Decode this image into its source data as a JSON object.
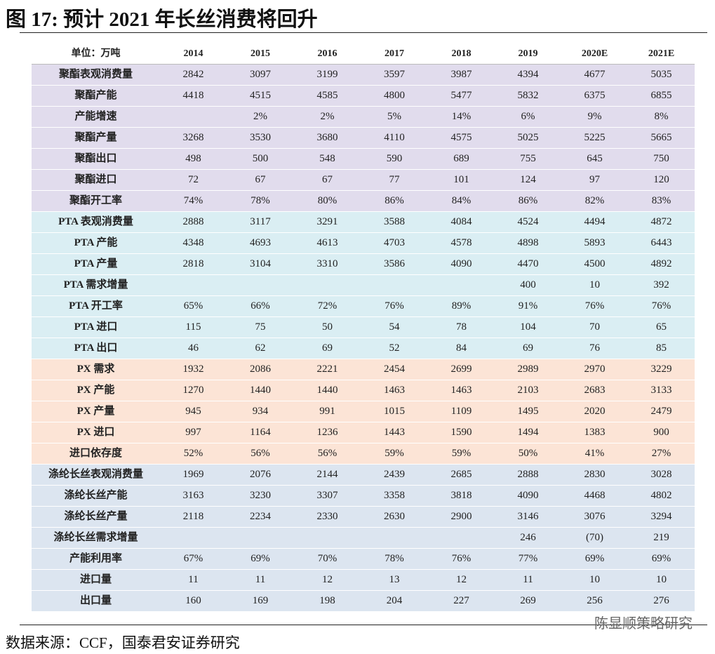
{
  "title": "图 17: 预计 2021 年长丝消费将回升",
  "table": {
    "header": [
      "单位：万吨",
      "2014",
      "2015",
      "2016",
      "2017",
      "2018",
      "2019",
      "2020E",
      "2021E"
    ],
    "groups": [
      {
        "rows": [
          {
            "label": "聚酯表观消费量",
            "values": [
              "2842",
              "3097",
              "3199",
              "3597",
              "3987",
              "4394",
              "4677",
              "5035"
            ]
          },
          {
            "label": "聚酯产能",
            "values": [
              "4418",
              "4515",
              "4585",
              "4800",
              "5477",
              "5832",
              "6375",
              "6855"
            ]
          },
          {
            "label": "产能增速",
            "values": [
              null,
              "2%",
              "2%",
              "5%",
              "14%",
              "6%",
              "9%",
              "8%"
            ]
          },
          {
            "label": "聚酯产量",
            "values": [
              "3268",
              "3530",
              "3680",
              "4110",
              "4575",
              "5025",
              "5225",
              "5665"
            ]
          },
          {
            "label": "聚酯出口",
            "values": [
              "498",
              "500",
              "548",
              "590",
              "689",
              "755",
              "645",
              "750"
            ]
          },
          {
            "label": "聚酯进口",
            "values": [
              "72",
              "67",
              "67",
              "77",
              "101",
              "124",
              "97",
              "120"
            ]
          },
          {
            "label": "聚酯开工率",
            "values": [
              "74%",
              "78%",
              "80%",
              "86%",
              "84%",
              "86%",
              "82%",
              "83%"
            ]
          }
        ]
      },
      {
        "rows": [
          {
            "label": "PTA 表观消费量",
            "values": [
              "2888",
              "3117",
              "3291",
              "3588",
              "4084",
              "4524",
              "4494",
              "4872"
            ]
          },
          {
            "label": "PTA 产能",
            "values": [
              "4348",
              "4693",
              "4613",
              "4703",
              "4578",
              "4898",
              "5893",
              "6443"
            ]
          },
          {
            "label": "PTA 产量",
            "values": [
              "2818",
              "3104",
              "3310",
              "3586",
              "4090",
              "4470",
              "4500",
              "4892"
            ]
          },
          {
            "label": "PTA 需求增量",
            "values": [
              null,
              null,
              null,
              null,
              null,
              "400",
              "10",
              "392"
            ]
          },
          {
            "label": "PTA 开工率",
            "values": [
              "65%",
              "66%",
              "72%",
              "76%",
              "89%",
              "91%",
              "76%",
              "76%"
            ]
          },
          {
            "label": "PTA 进口",
            "values": [
              "115",
              "75",
              "50",
              "54",
              "78",
              "104",
              "70",
              "65"
            ]
          },
          {
            "label": "PTA 出口",
            "values": [
              "46",
              "62",
              "69",
              "52",
              "84",
              "69",
              "76",
              "85"
            ]
          }
        ]
      },
      {
        "rows": [
          {
            "label": "PX 需求",
            "values": [
              "1932",
              "2086",
              "2221",
              "2454",
              "2699",
              "2989",
              "2970",
              "3229"
            ]
          },
          {
            "label": "PX 产能",
            "values": [
              "1270",
              "1440",
              "1440",
              "1463",
              "1463",
              "2103",
              "2683",
              "3133"
            ]
          },
          {
            "label": "PX 产量",
            "values": [
              "945",
              "934",
              "991",
              "1015",
              "1109",
              "1495",
              "2020",
              "2479"
            ]
          },
          {
            "label": "PX 进口",
            "values": [
              "997",
              "1164",
              "1236",
              "1443",
              "1590",
              "1494",
              "1383",
              "900"
            ]
          },
          {
            "label": "进口依存度",
            "values": [
              "52%",
              "56%",
              "56%",
              "59%",
              "59%",
              "50%",
              "41%",
              "27%"
            ]
          }
        ]
      },
      {
        "rows": [
          {
            "label": "涤纶长丝表观消费量",
            "values": [
              "1969",
              "2076",
              "2144",
              "2439",
              "2685",
              "2888",
              "2830",
              "3028"
            ]
          },
          {
            "label": "涤纶长丝产能",
            "values": [
              "3163",
              "3230",
              "3307",
              "3358",
              "3818",
              "4090",
              "4468",
              "4802"
            ]
          },
          {
            "label": "涤纶长丝产量",
            "values": [
              "2118",
              "2234",
              "2330",
              "2630",
              "2900",
              "3146",
              "3076",
              "3294"
            ]
          },
          {
            "label": "涤纶长丝需求增量",
            "values": [
              null,
              null,
              null,
              null,
              null,
              "246",
              "(70)",
              "219"
            ]
          },
          {
            "label": "产能利用率",
            "values": [
              "67%",
              "69%",
              "70%",
              "78%",
              "76%",
              "77%",
              "69%",
              "69%"
            ]
          },
          {
            "label": "进口量",
            "values": [
              "11",
              "11",
              "12",
              "13",
              "12",
              "11",
              "10",
              "10"
            ]
          },
          {
            "label": "出口量",
            "values": [
              "160",
              "169",
              "198",
              "204",
              "227",
              "269",
              "256",
              "276"
            ]
          }
        ]
      }
    ]
  },
  "watermark": "陈显顺策略研究",
  "source": "数据来源：CCF，国泰君安证券研究"
}
